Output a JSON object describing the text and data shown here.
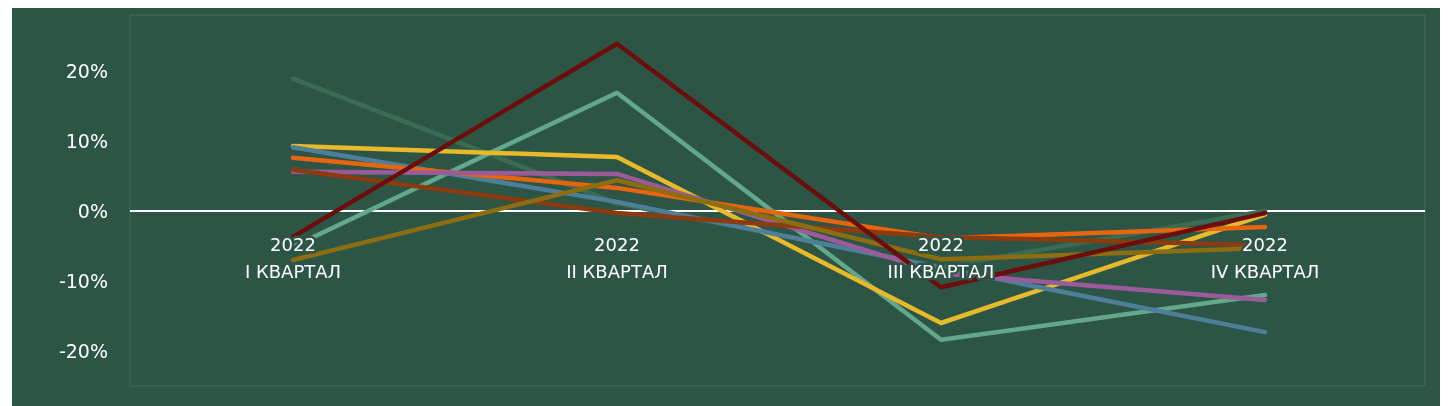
{
  "chart_data": {
    "type": "line",
    "categories": [
      "2022\nI КВАРТАЛ",
      "2022\nII КВАРТАЛ",
      "2022\nIII КВАРТАЛ",
      "2022\nIV КВАРТАЛ"
    ],
    "series": [
      {
        "color": "#3b6b52",
        "values": [
          18.9,
          1.1,
          -8.0,
          0
        ]
      },
      {
        "color": "#63a88a",
        "values": [
          -5.1,
          16.9,
          -18.4,
          -12.0
        ]
      },
      {
        "color": "#e8b92a",
        "values": [
          9.3,
          7.7,
          -16.0,
          -0.5
        ]
      },
      {
        "color": "#4e7f9a",
        "values": [
          9.1,
          1.3,
          -8.1,
          -17.3
        ]
      },
      {
        "color": "#e8650f",
        "values": [
          7.6,
          3.3,
          -3.9,
          -2.3
        ]
      },
      {
        "color": "#9b5b9b",
        "values": [
          5.6,
          5.3,
          -8.9,
          -12.7
        ]
      },
      {
        "color": "#8c3a10",
        "values": [
          5.9,
          -0.3,
          -3.7,
          -4.9
        ]
      },
      {
        "color": "#8c6d12",
        "values": [
          -7.0,
          4.4,
          -6.9,
          -5.3
        ]
      },
      {
        "color": "#6b0e0b",
        "values": [
          -3.7,
          23.9,
          -10.9,
          -0.3
        ]
      }
    ],
    "ylim": [
      -25,
      28
    ],
    "yticks": [
      {
        "value": -20,
        "label": "-20%"
      },
      {
        "value": -10,
        "label": "-10%"
      },
      {
        "value": 0,
        "label": "0%"
      },
      {
        "value": 10,
        "label": "10%"
      },
      {
        "value": 20,
        "label": "20%"
      }
    ],
    "grid": false,
    "marker": "none",
    "line_style": "solid"
  }
}
